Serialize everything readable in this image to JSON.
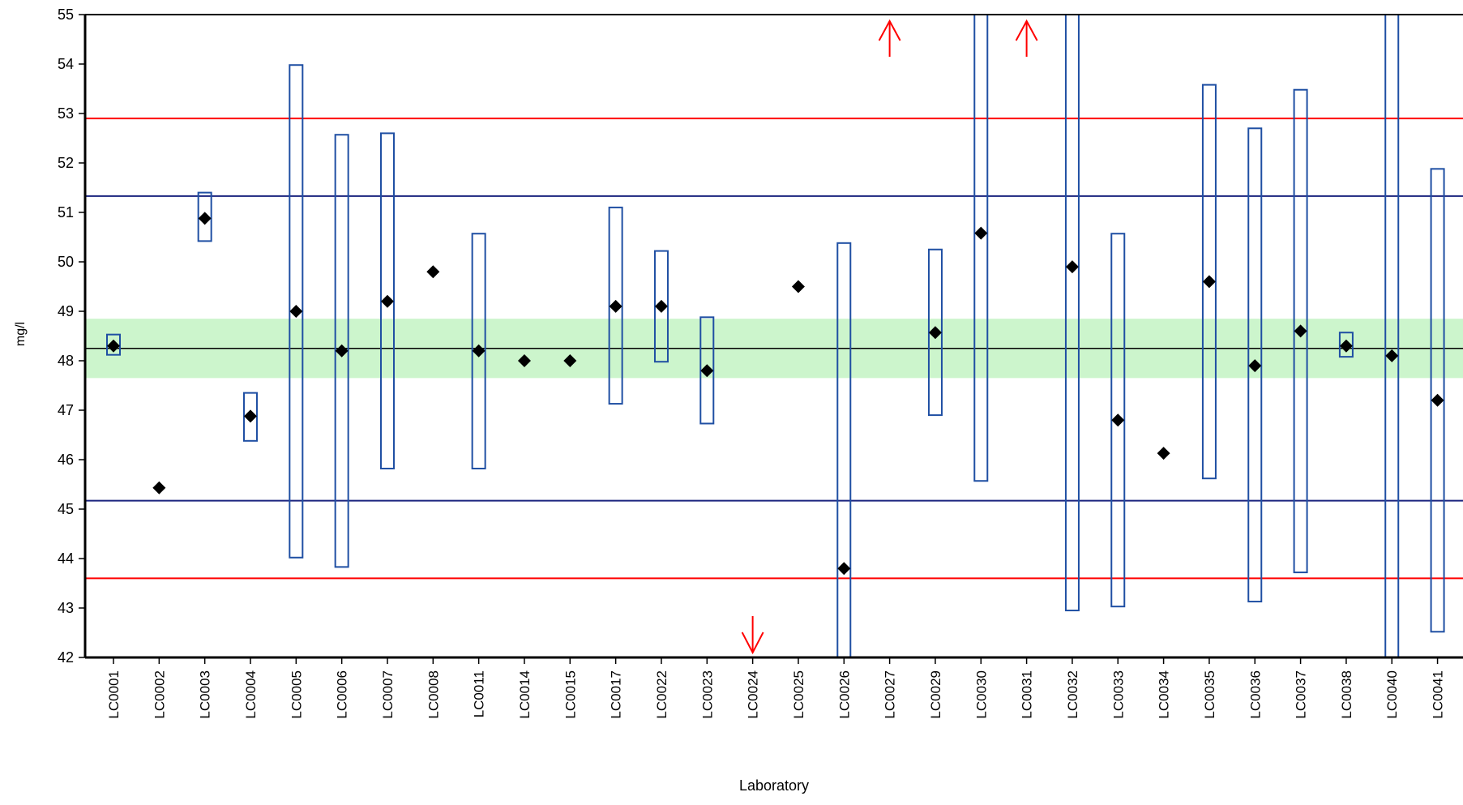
{
  "chart_data": {
    "type": "scatter",
    "title": "",
    "xlabel": "Laboratory",
    "ylabel": "mg/l",
    "ylim": [
      42,
      55
    ],
    "y_ticks": [
      "42",
      "43",
      "44",
      "45",
      "46",
      "47",
      "48",
      "49",
      "50",
      "51",
      "52",
      "53",
      "54",
      "55"
    ],
    "grid": false,
    "reference_lines": {
      "assigned_value": 48.25,
      "tolerance_band": [
        47.65,
        48.85
      ],
      "inner_limits": [
        45.17,
        51.33
      ],
      "outer_limits": [
        43.6,
        52.9
      ]
    },
    "colors": {
      "points": "#000000",
      "uncertainty_boxes": "#1f4fa3",
      "assigned_line": "#000000",
      "tolerance_band": "#ccf5cc",
      "inner_limits": "#1a237e",
      "outer_limits": "#ff0000",
      "off_scale_arrows": "#ff0000"
    },
    "labs": [
      {
        "label": "LC0001",
        "value": 48.3,
        "low": 48.12,
        "high": 48.53
      },
      {
        "label": "LC0002",
        "value": 45.43,
        "low": null,
        "high": null
      },
      {
        "label": "LC0003",
        "value": 50.88,
        "low": 50.42,
        "high": 51.4
      },
      {
        "label": "LC0004",
        "value": 46.88,
        "low": 46.38,
        "high": 47.35
      },
      {
        "label": "LC0005",
        "value": 49.0,
        "low": 44.02,
        "high": 53.98
      },
      {
        "label": "LC0006",
        "value": 48.2,
        "low": 43.83,
        "high": 52.57
      },
      {
        "label": "LC0007",
        "value": 49.2,
        "low": 45.82,
        "high": 52.6
      },
      {
        "label": "LC0008",
        "value": 49.8,
        "low": null,
        "high": null
      },
      {
        "label": "LC0011",
        "value": 48.2,
        "low": 45.82,
        "high": 50.57
      },
      {
        "label": "LC0014",
        "value": 48.0,
        "low": null,
        "high": null
      },
      {
        "label": "LC0015",
        "value": 48.0,
        "low": null,
        "high": null
      },
      {
        "label": "LC0017",
        "value": 49.1,
        "low": 47.13,
        "high": 51.1
      },
      {
        "label": "LC0022",
        "value": 49.1,
        "low": 47.98,
        "high": 50.22
      },
      {
        "label": "LC0023",
        "value": 47.8,
        "low": 46.73,
        "high": 48.88
      },
      {
        "label": "LC0024",
        "value": null,
        "low": null,
        "high": null,
        "off_scale": "below"
      },
      {
        "label": "LC0025",
        "value": 49.5,
        "low": null,
        "high": null
      },
      {
        "label": "LC0026",
        "value": 43.8,
        "low": 42.0,
        "high": 50.38
      },
      {
        "label": "LC0027",
        "value": null,
        "low": null,
        "high": null,
        "off_scale": "above"
      },
      {
        "label": "LC0029",
        "value": 48.57,
        "low": 46.9,
        "high": 50.25
      },
      {
        "label": "LC0030",
        "value": 50.58,
        "low": 45.57,
        "high": 55.0
      },
      {
        "label": "LC0031",
        "value": null,
        "low": null,
        "high": null,
        "off_scale": "above"
      },
      {
        "label": "LC0032",
        "value": 49.9,
        "low": 42.95,
        "high": 55.0
      },
      {
        "label": "LC0033",
        "value": 46.8,
        "low": 43.03,
        "high": 50.57
      },
      {
        "label": "LC0034",
        "value": 46.13,
        "low": null,
        "high": null
      },
      {
        "label": "LC0035",
        "value": 49.6,
        "low": 45.62,
        "high": 53.58
      },
      {
        "label": "LC0036",
        "value": 47.9,
        "low": 43.13,
        "high": 52.7
      },
      {
        "label": "LC0037",
        "value": 48.6,
        "low": 43.72,
        "high": 53.48
      },
      {
        "label": "LC0038",
        "value": 48.3,
        "low": 48.08,
        "high": 48.57
      },
      {
        "label": "LC0040",
        "value": 48.1,
        "low": 42.0,
        "high": 55.0
      },
      {
        "label": "LC0041",
        "value": 47.2,
        "low": 42.52,
        "high": 51.88
      }
    ]
  }
}
